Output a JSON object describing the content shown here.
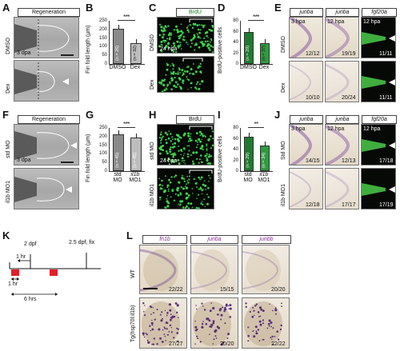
{
  "panels": {
    "A": {
      "letter": "A",
      "header": "Regeneration",
      "rows": [
        "DMSO",
        "Dex"
      ],
      "stage": "3 dpa"
    },
    "B": {
      "letter": "B",
      "ylabel": "Fin fold length (µm)",
      "yticks": [
        "0",
        "50",
        "100",
        "150",
        "200",
        "250"
      ],
      "categories": [
        "DMSO",
        "Dex"
      ],
      "n_labels": [
        "(n = 26)",
        "(n = 32)"
      ],
      "sig": "***"
    },
    "C": {
      "letter": "C",
      "header": "BrdU",
      "rows": [
        "DMSO",
        "Dex"
      ],
      "stage": "24 hpa"
    },
    "D": {
      "letter": "D",
      "ylabel": "BrdU-positive cells",
      "yticks": [
        "0",
        "20",
        "40",
        "60",
        "80"
      ],
      "categories": [
        "DMSO",
        "Dex"
      ],
      "n_labels": [
        "(n = 29)",
        "(n = 37)"
      ],
      "sig": "***"
    },
    "E": {
      "letter": "E",
      "headers": [
        "junba",
        "junba",
        "fgf20a"
      ],
      "rows": [
        "DMSO",
        "Dex"
      ],
      "stages": [
        "3 hpa",
        "12 hpa",
        "12 hpa"
      ],
      "counts_row1": [
        "12/12",
        "19/19",
        "11/11"
      ],
      "counts_row2": [
        "10/10",
        "20/24",
        "11/11"
      ]
    },
    "F": {
      "letter": "F",
      "header": "Regeneration",
      "rows": [
        "std MO",
        "il1b MO1"
      ],
      "stage": "3 dpa"
    },
    "G": {
      "letter": "G",
      "ylabel": "Fin fold length (µm)",
      "yticks": [
        "0",
        "50",
        "100",
        "150",
        "200",
        "250"
      ],
      "categories": [
        "std MO",
        "il1b MO1"
      ],
      "cat_top": [
        "std",
        "il1b"
      ],
      "cat_bottom": [
        "MO",
        "MO1"
      ],
      "n_labels": [
        "(n = 45)",
        "(n = 45)"
      ],
      "sig": "***"
    },
    "H": {
      "letter": "H",
      "header": "BrdU",
      "rows": [
        "std MO",
        "il1b MO1"
      ],
      "stage": "24 hpa"
    },
    "I": {
      "letter": "I",
      "ylabel": "BrdU-positive cells",
      "yticks": [
        "0",
        "20",
        "40",
        "60",
        "80"
      ],
      "categories": [
        "std MO",
        "il1b MO1"
      ],
      "cat_top": [
        "std",
        "il1b"
      ],
      "cat_bottom": [
        "MO",
        "MO1"
      ],
      "n_labels": [
        "(n = 29)",
        "(n = 34)"
      ],
      "sig": "**"
    },
    "J": {
      "letter": "J",
      "headers": [
        "junba",
        "junba",
        "fgf20a"
      ],
      "rows": [
        "Std MO",
        "il1b MO1"
      ],
      "stages": [
        "3 hpa",
        "12 hpa",
        "12 hpa"
      ],
      "counts_row1": [
        "14/15",
        "12/13",
        "17/18"
      ],
      "counts_row2": [
        "12/18",
        "17/17",
        "17/19"
      ]
    },
    "K": {
      "letter": "K",
      "label_2dpf": "2 dpf",
      "label_fix": "2.5 dpf, fix",
      "label_1hr_top": "1 hr",
      "label_1hr_bottom": "1 hr",
      "label_6hrs": "6 hrs"
    },
    "L": {
      "letter": "L",
      "headers": [
        "fn1b",
        "junba",
        "junbb"
      ],
      "rows": [
        "WT",
        "Tg(hsp70l:il1b)"
      ],
      "counts_row1": [
        "22/22",
        "15/15",
        "20/20"
      ],
      "counts_row2": [
        "27/27",
        "20/20",
        "22/22"
      ]
    }
  },
  "chart_data": [
    {
      "panel": "B",
      "type": "bar",
      "categories": [
        "DMSO",
        "Dex"
      ],
      "values": [
        205,
        120
      ],
      "ylabel": "Fin fold length (µm)",
      "ylim": [
        0,
        250
      ],
      "bar_colors": [
        "#8a8a8a",
        "#bdbdbd"
      ]
    },
    {
      "panel": "D",
      "type": "bar",
      "categories": [
        "DMSO",
        "Dex"
      ],
      "values": [
        59,
        38
      ],
      "ylabel": "BrdU-positive cells",
      "ylim": [
        0,
        80
      ],
      "bar_colors": [
        "#1f7a2e",
        "#2f9a3f"
      ]
    },
    {
      "panel": "G",
      "type": "bar",
      "categories": [
        "std MO",
        "il1b MO1"
      ],
      "values": [
        212,
        195
      ],
      "ylabel": "Fin fold length (µm)",
      "ylim": [
        0,
        250
      ],
      "bar_colors": [
        "#8a8a8a",
        "#bdbdbd"
      ]
    },
    {
      "panel": "I",
      "type": "bar",
      "categories": [
        "std MO",
        "il1b MO1"
      ],
      "values": [
        64,
        48
      ],
      "ylabel": "BrdU-positive cells",
      "ylim": [
        0,
        80
      ],
      "bar_colors": [
        "#1f7a2e",
        "#2f9a3f"
      ]
    }
  ]
}
